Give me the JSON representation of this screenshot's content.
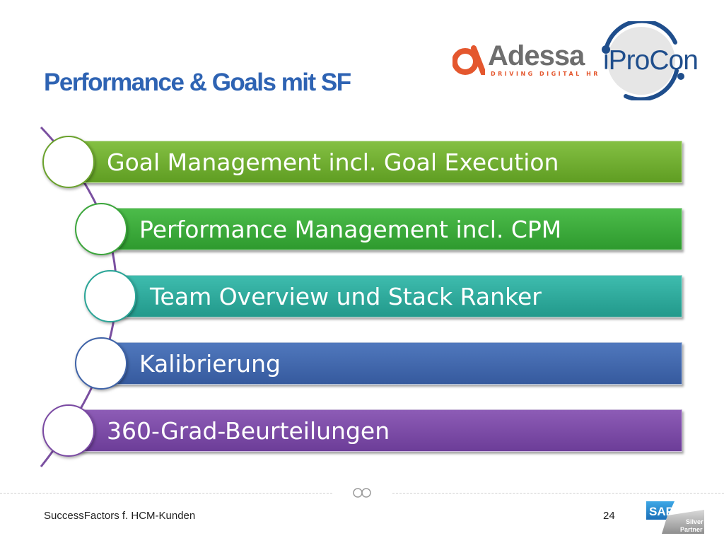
{
  "slide": {
    "title": "Performance & Goals mit SF"
  },
  "logos": {
    "adessa": {
      "name": "Adessa",
      "tagline": "DRIVING DIGITAL HR"
    },
    "iprocon": {
      "name": "iProCon"
    }
  },
  "items": [
    {
      "label": "Goal Management incl. Goal Execution",
      "color": "#6aa22c"
    },
    {
      "label": "Performance Management incl. CPM",
      "color": "#3aa63a"
    },
    {
      "label": "Team Overview und Stack Ranker",
      "color": "#2aa597"
    },
    {
      "label": "Kalibrierung",
      "color": "#3f63a8"
    },
    {
      "label": "360-Grad-Beurteilungen",
      "color": "#7a49a3"
    }
  ],
  "footer": {
    "text": "SuccessFactors f. HCM-Kunden",
    "page_number": "24"
  },
  "sap_badge": {
    "brand": "SAP",
    "line1": "Silver",
    "line2": "Partner"
  },
  "colors": {
    "title": "#2e63b3",
    "timeline_arc": "#7a4fa0",
    "adessa_orange": "#e4572e",
    "iprocon_blue": "#1f4e8c"
  }
}
